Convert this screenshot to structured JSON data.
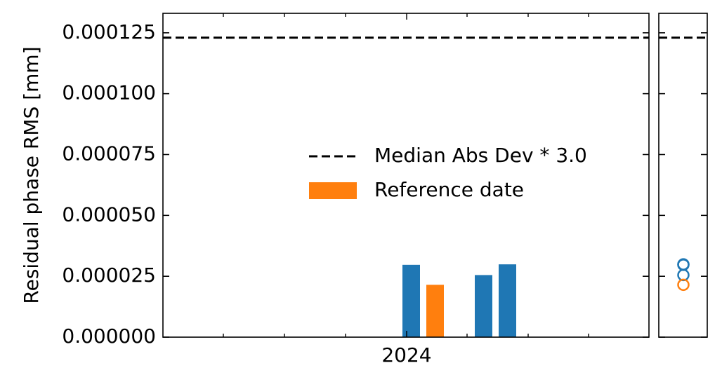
{
  "chart_data": {
    "type": "bar",
    "title": "",
    "xlabel": "",
    "ylabel": "Residual phase RMS [mm]",
    "ylim": [
      0,
      0.000133
    ],
    "yticks": [
      {
        "value": 0,
        "label": "0.000000"
      },
      {
        "value": 2.5e-05,
        "label": "0.000025"
      },
      {
        "value": 5e-05,
        "label": "0.000050"
      },
      {
        "value": 7.5e-05,
        "label": "0.000075"
      },
      {
        "value": 0.0001,
        "label": "0.000100"
      },
      {
        "value": 0.000125,
        "label": "0.000125"
      }
    ],
    "xtick_labels": [
      "2024"
    ],
    "grid": false,
    "bars": [
      {
        "value": 2.97e-05,
        "reference": false,
        "color": "#1f77b4"
      },
      {
        "value": 2.15e-05,
        "reference": true,
        "color": "#ff7f0e"
      },
      {
        "value": 2.55e-05,
        "reference": false,
        "color": "#1f77b4"
      },
      {
        "value": 2.99e-05,
        "reference": false,
        "color": "#1f77b4"
      }
    ],
    "threshold": {
      "value": 0.000123,
      "style": "dashed",
      "color": "#000000"
    },
    "side_panel_points": [
      {
        "value": 2.97e-05,
        "color": "#1f77b4"
      },
      {
        "value": 2.55e-05,
        "color": "#1f77b4"
      },
      {
        "value": 2.99e-05,
        "color": "#1f77b4"
      },
      {
        "value": 2.15e-05,
        "color": "#ff7f0e"
      }
    ],
    "legend": {
      "placement": "center-right",
      "entries": [
        {
          "label": "Median Abs Dev * 3.0",
          "kind": "dashed-line",
          "color": "#000000"
        },
        {
          "label": "Reference date",
          "kind": "patch",
          "color": "#ff7f0e"
        }
      ]
    }
  }
}
